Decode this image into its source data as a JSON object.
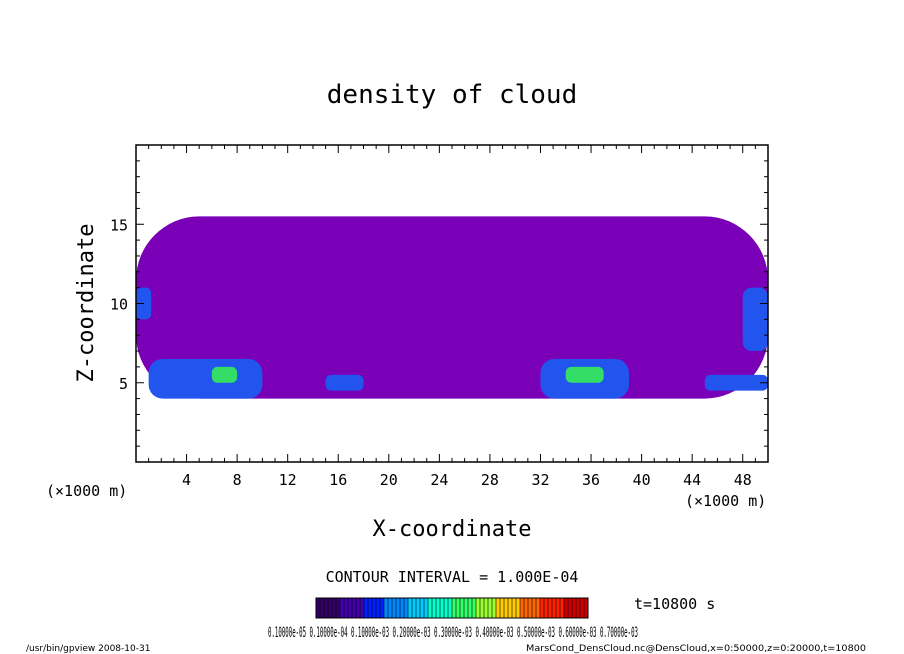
{
  "chart_data": {
    "type": "heatmap",
    "title": "density of cloud",
    "xlabel": "X-coordinate",
    "ylabel": "Z-coordinate",
    "x_unit": "(×1000 m)",
    "y_unit": "(×1000 m)",
    "xlim": [
      0,
      50
    ],
    "ylim": [
      0,
      20
    ],
    "x_ticks": [
      "4",
      "8",
      "12",
      "16",
      "20",
      "24",
      "28",
      "32",
      "36",
      "40",
      "44",
      "48"
    ],
    "y_ticks": [
      "5",
      "10",
      "15"
    ],
    "contour_interval_text": "CONTOUR INTERVAL = 1.000E-04",
    "time_text": "t=10800 s",
    "colorbar_labels_text": "0.10000e-05 0.10000e-04 0.10000e-03 0.20000e-03 0.30000e-03 0.40000e-03 0.50000e-03 0.60000e-03 0.70000e-03",
    "colorbar_colors": [
      "#330066",
      "#4400aa",
      "#0022ff",
      "#0088ff",
      "#00ccff",
      "#00ffcc",
      "#33ff66",
      "#99ff33",
      "#ffcc00",
      "#ff6600",
      "#ff2200",
      "#cc0000"
    ],
    "footer_left": "/usr/bin/gpview  2008-10-31",
    "footer_right": "MarsCond_DensCloud.nc@DensCloud,x=0:50000,z=0:20000,t=10800",
    "blobs": [
      {
        "x0": 0,
        "x1": 50,
        "z0": 4,
        "z1": 15.5,
        "level": 1
      },
      {
        "x0": 1,
        "x1": 10,
        "z0": 4,
        "z1": 6.5,
        "level": 3
      },
      {
        "x0": 6,
        "x1": 8,
        "z0": 5,
        "z1": 6,
        "level": 6
      },
      {
        "x0": 32,
        "x1": 39,
        "z0": 4,
        "z1": 6.5,
        "level": 3
      },
      {
        "x0": 34,
        "x1": 37,
        "z0": 5,
        "z1": 6,
        "level": 6
      },
      {
        "x0": 0,
        "x1": 1.2,
        "z0": 9,
        "z1": 11,
        "level": 3
      },
      {
        "x0": 48,
        "x1": 50,
        "z0": 7,
        "z1": 11,
        "level": 3
      },
      {
        "x0": 45,
        "x1": 50,
        "z0": 4.5,
        "z1": 5.5,
        "level": 3
      },
      {
        "x0": 15,
        "x1": 18,
        "z0": 4.5,
        "z1": 5.5,
        "level": 3
      }
    ]
  }
}
